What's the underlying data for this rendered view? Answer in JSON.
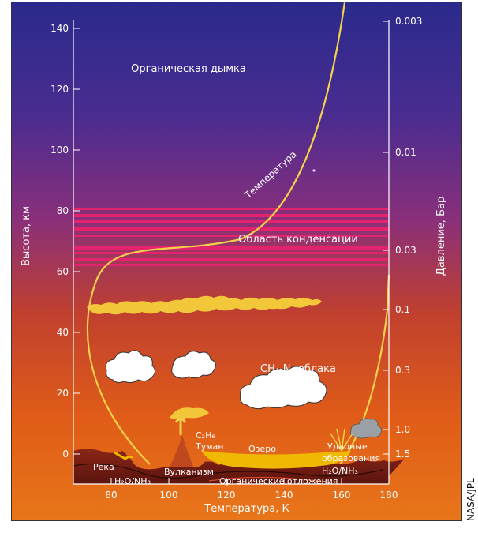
{
  "labels": {
    "haze": "Органическая дымка",
    "temperature_curve": "Температура",
    "condensation": "Область конденсации",
    "clouds": "CH₄-N₂ облака",
    "ethane_fog_1": "C₂H₆",
    "ethane_fog_2": "Туман",
    "lake": "Озеро",
    "river": "Река",
    "water_ammonia_left": "H₂O/NH₃",
    "volcanism": "Вулканизм",
    "organic_deposits": "Органические отложения",
    "impacts_1": "Ударные",
    "impacts_2": "образования",
    "water_ammonia_right": "H₂O/NH₃",
    "credit": "NASA/JPL"
  },
  "axes": {
    "left_title": "Высота, км",
    "right_title": "Давление, Бар",
    "bottom_title": "Температура, К",
    "left_ticks": [
      "0",
      "20",
      "40",
      "60",
      "80",
      "100",
      "120",
      "140"
    ],
    "bottom_ticks": [
      "80",
      "100",
      "120",
      "140",
      "160",
      "180"
    ],
    "right_ticks": [
      "1.5",
      "1.0",
      "0.3",
      "0.1",
      "0.03",
      "0.01",
      "0.003"
    ]
  },
  "colors": {
    "sky_top": "#2a2a8c",
    "sky_mid": "#7a2f8a",
    "sky_low": "#d0501e",
    "sky_bottom": "#e86a12",
    "temperature_curve": "#f2d24a",
    "condensation_bands": "#e3236e",
    "methane_clouds": "#f2c83a",
    "surface": "#7a1e14",
    "lake": "#f0b800"
  },
  "icons": [
    "cumulus-cloud-icon",
    "grey-cloud-icon",
    "impact-burst-icon",
    "volcano-icon"
  ]
}
